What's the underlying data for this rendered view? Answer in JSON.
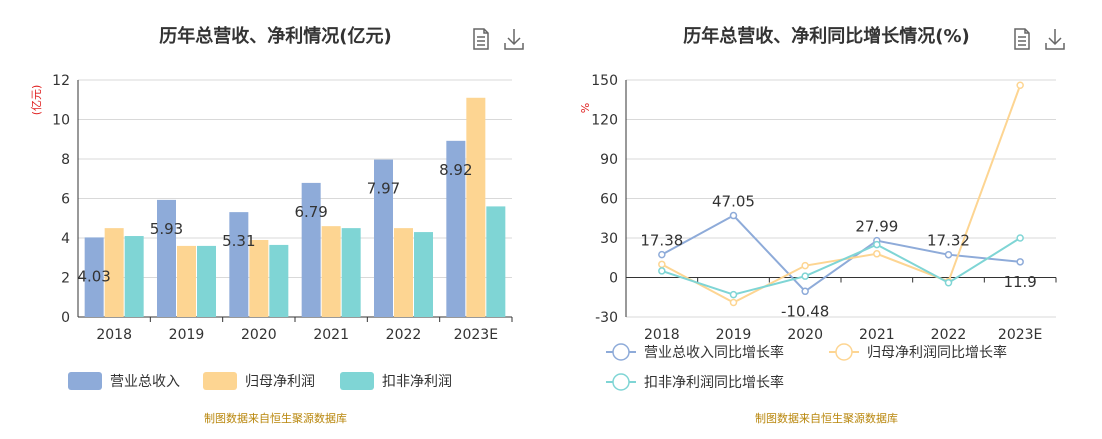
{
  "footer_text": "制图数据来自恒生聚源数据库",
  "chart_data": [
    {
      "type": "bar",
      "title": "历年总营收、净利情况(亿元)",
      "ylabel": "(亿元)",
      "categories": [
        "2018",
        "2019",
        "2020",
        "2021",
        "2022",
        "2023E"
      ],
      "ylim": [
        0,
        12
      ],
      "yticks": [
        0,
        2,
        4,
        6,
        8,
        10,
        12
      ],
      "grid": true,
      "legend_position": "bottom",
      "series": [
        {
          "name": "营业总收入",
          "color": "#8eabd9",
          "values": [
            4.03,
            5.93,
            5.31,
            6.79,
            7.97,
            8.92
          ],
          "labels": [
            "4.03",
            "5.93",
            "5.31",
            "6.79",
            "7.97",
            "8.92"
          ]
        },
        {
          "name": "归母净利润",
          "color": "#fdd592",
          "values": [
            4.5,
            3.6,
            3.9,
            4.6,
            4.5,
            11.1
          ]
        },
        {
          "name": "扣非净利润",
          "color": "#7fd5d5",
          "values": [
            4.1,
            3.6,
            3.65,
            4.5,
            4.3,
            5.6
          ]
        }
      ]
    },
    {
      "type": "line",
      "title": "历年总营收、净利同比增长情况(%)",
      "ylabel": "%",
      "categories": [
        "2018",
        "2019",
        "2020",
        "2021",
        "2022",
        "2023E"
      ],
      "ylim": [
        -30,
        150
      ],
      "yticks": [
        -30,
        0,
        30,
        60,
        90,
        120,
        150
      ],
      "grid": true,
      "legend_position": "bottom",
      "series": [
        {
          "name": "营业总收入同比增长率",
          "color": "#8eabd9",
          "values": [
            17.38,
            47.05,
            -10.48,
            27.99,
            17.32,
            11.9
          ],
          "labels": [
            "17.38",
            "47.05",
            "-10.48",
            "27.99",
            "17.32",
            "11.9"
          ]
        },
        {
          "name": "归母净利润同比增长率",
          "color": "#fdd592",
          "values": [
            10,
            -19,
            9,
            18,
            -3,
            146
          ]
        },
        {
          "name": "扣非净利润同比增长率",
          "color": "#7fd5d5",
          "values": [
            5,
            -13,
            1,
            25,
            -4,
            30
          ]
        }
      ]
    }
  ]
}
